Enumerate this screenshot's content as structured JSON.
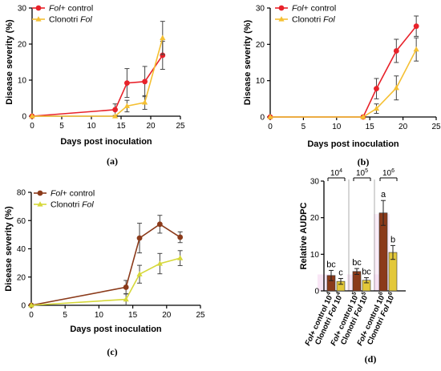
{
  "chart_data": [
    {
      "panel": "(a)",
      "type": "line",
      "xlabel": "Days post inoculation",
      "ylabel": "Disease severity (%)",
      "xlim": [
        0,
        25
      ],
      "ylim": [
        0,
        30
      ],
      "xticks": [
        0,
        5,
        10,
        15,
        20,
        25
      ],
      "yticks": [
        0,
        10,
        20,
        30
      ],
      "x": [
        0,
        14,
        16,
        19,
        22
      ],
      "series": [
        {
          "name_prefix": "Fol",
          "name_suffix": "+ control",
          "color": "#e8222a",
          "values": [
            0,
            1.8,
            9.2,
            9.6,
            16.9
          ],
          "errors": [
            0,
            1.6,
            4.0,
            4.2,
            3.9
          ]
        },
        {
          "name_prefix": "Clonotri ",
          "name_suffix": "Fol",
          "color": "#f5c033",
          "values": [
            0,
            0,
            2.8,
            3.8,
            21.7
          ],
          "errors": [
            0,
            0,
            1.6,
            1.9,
            4.6
          ]
        }
      ]
    },
    {
      "panel": "(b)",
      "type": "line",
      "xlabel": "Days post inoculation",
      "ylabel": "Disease severity (%)",
      "xlim": [
        0,
        25
      ],
      "ylim": [
        0,
        30
      ],
      "xticks": [
        0,
        5,
        10,
        15,
        20,
        25
      ],
      "yticks": [
        0,
        10,
        20,
        30
      ],
      "x": [
        0,
        14,
        16,
        19,
        22
      ],
      "series": [
        {
          "name_prefix": "Fol",
          "name_suffix": "+ control",
          "color": "#e8222a",
          "values": [
            0,
            0,
            7.8,
            18.2,
            25.0
          ],
          "errors": [
            0,
            0,
            2.8,
            3.2,
            2.8
          ]
        },
        {
          "name_prefix": "Clonotri ",
          "name_suffix": "Fol",
          "color": "#f5c033",
          "values": [
            0,
            0,
            2.3,
            8.0,
            18.6
          ],
          "errors": [
            0,
            0,
            1.3,
            3.3,
            3.2
          ]
        }
      ]
    },
    {
      "panel": "(c)",
      "type": "line",
      "xlabel": "Days post inoculation",
      "ylabel": "Disease severity (%)",
      "xlim": [
        0,
        25
      ],
      "ylim": [
        0,
        80
      ],
      "xticks": [
        0,
        5,
        10,
        15,
        20,
        25
      ],
      "yticks": [
        0,
        20,
        40,
        60,
        80
      ],
      "x": [
        0,
        14,
        16,
        19,
        22
      ],
      "series": [
        {
          "name_prefix": "Fol",
          "name_suffix": "+ control",
          "color": "#8b3a1a",
          "values": [
            0,
            12.8,
            47.6,
            57.4,
            48.2
          ],
          "errors": [
            0,
            4.8,
            10.5,
            6.3,
            3.8
          ]
        },
        {
          "name_prefix": "Clonotri ",
          "name_suffix": "Fol",
          "color": "#d6d83a",
          "values": [
            0,
            4.2,
            22.0,
            29.5,
            33.4
          ],
          "errors": [
            0,
            4.0,
            6.3,
            7.2,
            5.3
          ]
        }
      ]
    },
    {
      "panel": "(d)",
      "type": "bar",
      "ylabel": "Relative AUDPC",
      "ylim": [
        0,
        30
      ],
      "yticks": [
        0,
        10,
        20,
        30
      ],
      "groups": [
        {
          "base": "10",
          "exp": "4"
        },
        {
          "base": "10",
          "exp": "5"
        },
        {
          "base": "10",
          "exp": "6"
        }
      ],
      "categories": [
        {
          "prefix": "Fol",
          "middle": "+ control ",
          "base": "10",
          "exp": "4"
        },
        {
          "prefix": "Clonotri ",
          "middle": "Fol ",
          "base": "10",
          "exp": "4"
        },
        {
          "prefix": "Fol",
          "middle": "+ control ",
          "base": "10",
          "exp": "5"
        },
        {
          "prefix": "Clonotri ",
          "middle": "Fol ",
          "base": "10",
          "exp": "5"
        },
        {
          "prefix": "Fol",
          "middle": "+ control ",
          "base": "10",
          "exp": "6"
        },
        {
          "prefix": "Clonotri ",
          "middle": "Fol ",
          "base": "10",
          "exp": "6"
        }
      ],
      "values": [
        4.2,
        2.6,
        5.3,
        2.9,
        21.3,
        10.5
      ],
      "errors": [
        1.4,
        0.8,
        0.8,
        0.7,
        3.4,
        1.9
      ],
      "letters": [
        "bc",
        "c",
        "bc",
        "bc",
        "a",
        "b"
      ],
      "colors": [
        "#8b3a1a",
        "#e3c83a",
        "#8b3a1a",
        "#e3c83a",
        "#8b3a1a",
        "#e3c83a"
      ]
    }
  ]
}
